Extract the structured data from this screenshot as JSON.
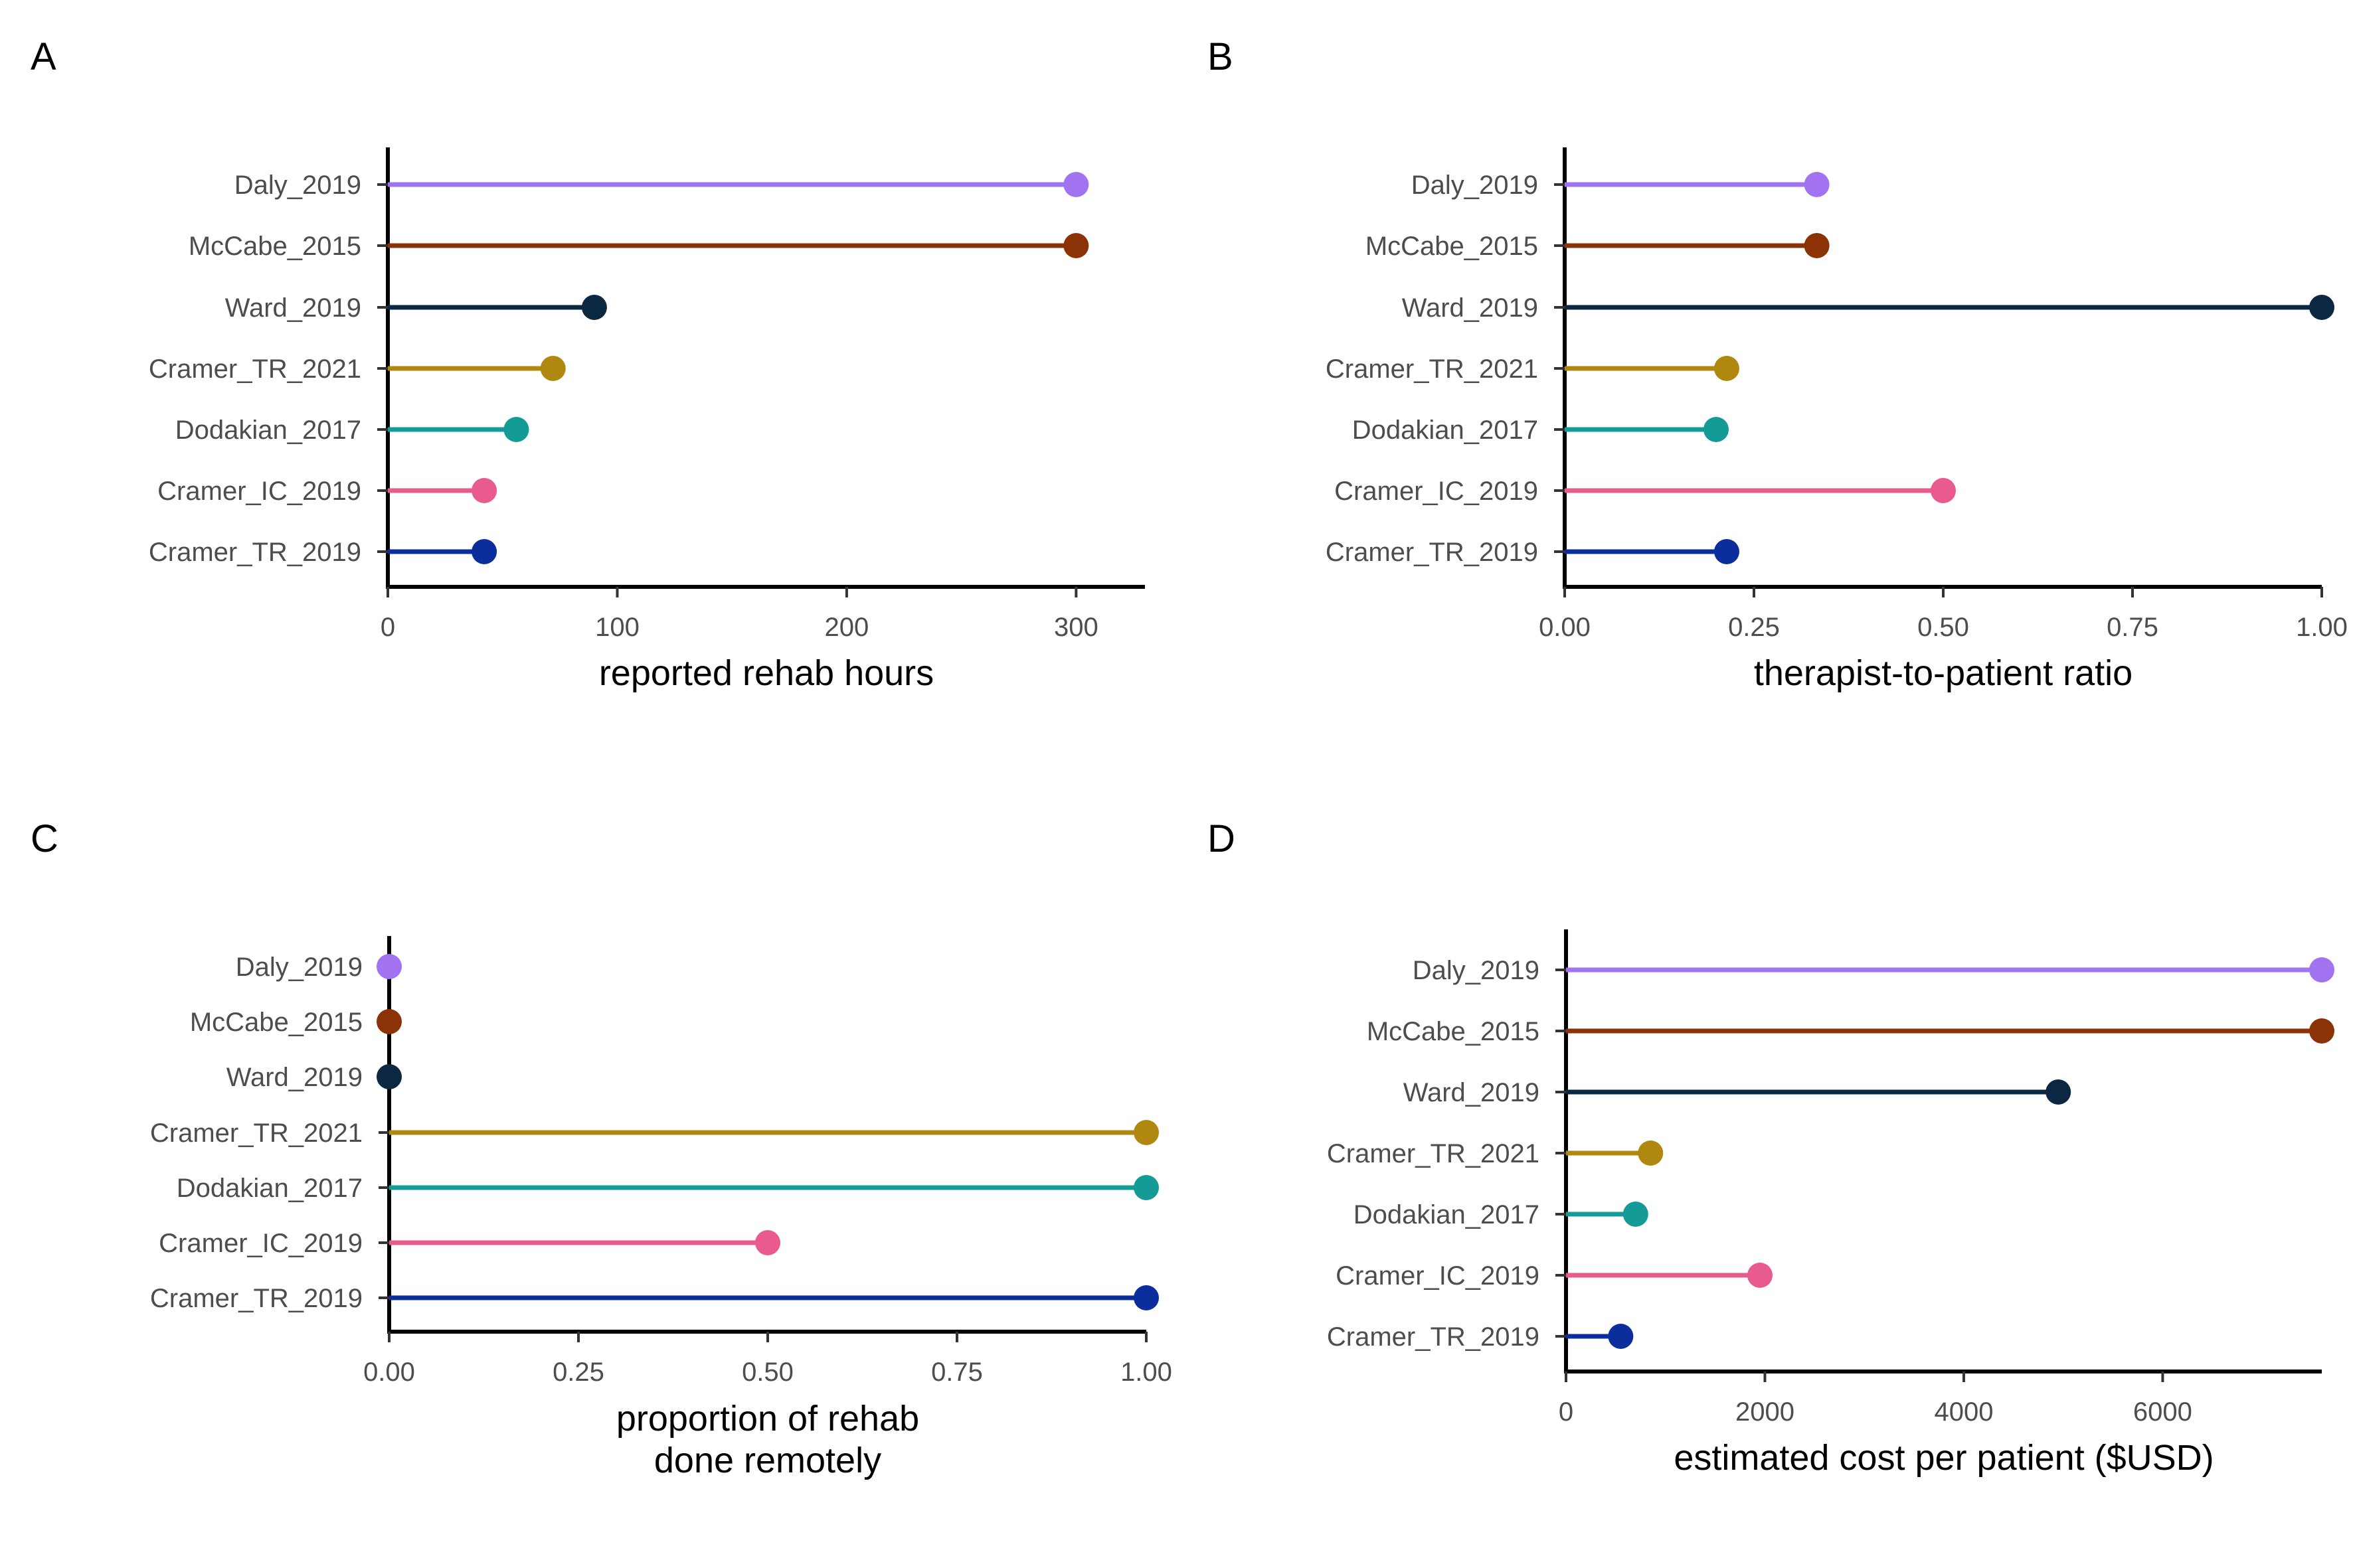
{
  "chart_data": [
    {
      "type": "lollipop",
      "panel_label": "A",
      "categories": [
        "Daly_2019",
        "McCabe_2015",
        "Ward_2019",
        "Cramer_TR_2021",
        "Dodakian_2017",
        "Cramer_IC_2019",
        "Cramer_TR_2019"
      ],
      "values": [
        300,
        300,
        90,
        72,
        56,
        42,
        42
      ],
      "colors": [
        "#a173f0",
        "#8b3207",
        "#0c2742",
        "#b0880f",
        "#149b98",
        "#e95a8e",
        "#0b2e9c"
      ],
      "xlabel": [
        "reported rehab hours"
      ],
      "xlim": [
        0,
        330
      ],
      "ticks": [
        0,
        100,
        200,
        300
      ],
      "tick_labels": [
        "0",
        "100",
        "200",
        "300"
      ]
    },
    {
      "type": "lollipop",
      "panel_label": "B",
      "categories": [
        "Daly_2019",
        "McCabe_2015",
        "Ward_2019",
        "Cramer_TR_2021",
        "Dodakian_2017",
        "Cramer_IC_2019",
        "Cramer_TR_2019"
      ],
      "values": [
        0.333,
        0.333,
        1.0,
        0.214,
        0.2,
        0.5,
        0.214
      ],
      "colors": [
        "#a173f0",
        "#8b3207",
        "#0c2742",
        "#b0880f",
        "#149b98",
        "#e95a8e",
        "#0b2e9c"
      ],
      "xlabel": [
        "therapist-to-patient ratio"
      ],
      "xlim": [
        0,
        1
      ],
      "ticks": [
        0,
        0.25,
        0.5,
        0.75,
        1
      ],
      "tick_labels": [
        "0.00",
        "0.25",
        "0.50",
        "0.75",
        "1.00"
      ]
    },
    {
      "type": "lollipop",
      "panel_label": "C",
      "categories": [
        "Daly_2019",
        "McCabe_2015",
        "Ward_2019",
        "Cramer_TR_2021",
        "Dodakian_2017",
        "Cramer_IC_2019",
        "Cramer_TR_2019"
      ],
      "values": [
        0,
        0,
        0,
        1,
        1,
        0.5,
        1
      ],
      "colors": [
        "#a173f0",
        "#8b3207",
        "#0c2742",
        "#b0880f",
        "#149b98",
        "#e95a8e",
        "#0b2e9c"
      ],
      "xlabel": [
        "proportion of rehab",
        "done remotely"
      ],
      "xlim": [
        0,
        1
      ],
      "ticks": [
        0,
        0.25,
        0.5,
        0.75,
        1
      ],
      "tick_labels": [
        "0.00",
        "0.25",
        "0.50",
        "0.75",
        "1.00"
      ]
    },
    {
      "type": "lollipop",
      "panel_label": "D",
      "categories": [
        "Daly_2019",
        "McCabe_2015",
        "Ward_2019",
        "Cramer_TR_2021",
        "Dodakian_2017",
        "Cramer_IC_2019",
        "Cramer_TR_2019"
      ],
      "values": [
        7600,
        7600,
        4950,
        850,
        700,
        1950,
        550
      ],
      "colors": [
        "#a173f0",
        "#8b3207",
        "#0c2742",
        "#b0880f",
        "#149b98",
        "#e95a8e",
        "#0b2e9c"
      ],
      "xlabel": [
        "estimated cost per patient ($USD)"
      ],
      "xlim": [
        0,
        7600
      ],
      "ticks": [
        0,
        2000,
        4000,
        6000
      ],
      "tick_labels": [
        "0",
        "2000",
        "4000",
        "6000"
      ]
    }
  ]
}
